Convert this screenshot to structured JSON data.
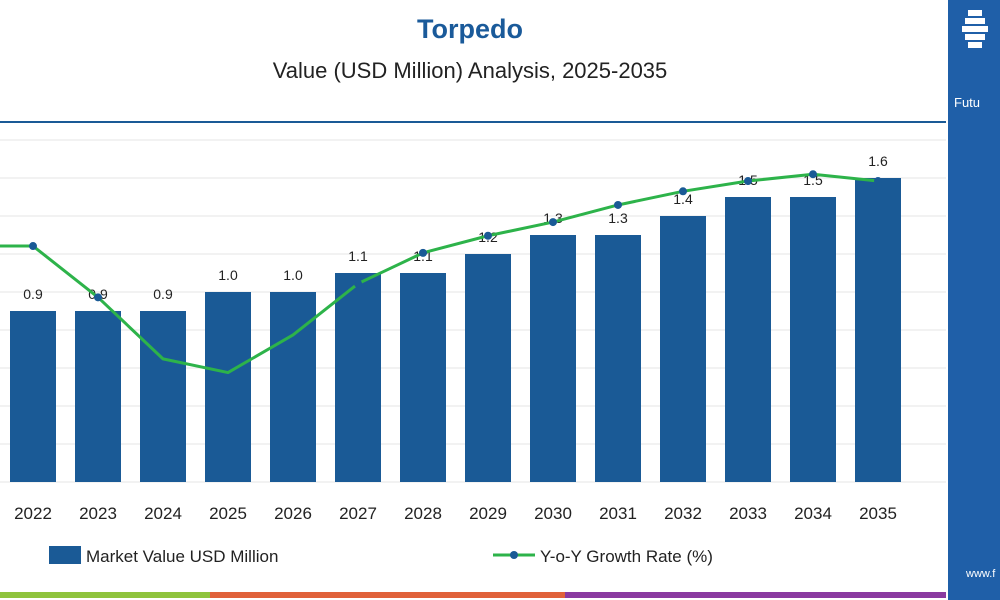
{
  "chart_data": {
    "type": "bar",
    "title": "Torpedo",
    "subtitle": "Value (USD Million) Analysis, 2025-2035",
    "categories": [
      "2022",
      "2023",
      "2024",
      "2025",
      "2026",
      "2027",
      "2028",
      "2029",
      "2030",
      "2031",
      "2032",
      "2033",
      "2034",
      "2035"
    ],
    "series": [
      {
        "name": "Market Value USD Million",
        "kind": "bar",
        "color": "#1a5a96",
        "values": [
          0.9,
          0.9,
          0.9,
          1.0,
          1.0,
          1.1,
          1.1,
          1.2,
          1.3,
          1.3,
          1.4,
          1.5,
          1.5,
          1.6
        ],
        "labels": [
          "0.9",
          "0.9",
          "0.9",
          "1.0",
          "1.0",
          "1.1",
          "1.1",
          "1.2",
          "1.3",
          "1.3",
          "1.4",
          "1.5",
          "1.5",
          "1.6"
        ]
      },
      {
        "name": "Y-o-Y Growth Rate (%)",
        "kind": "line",
        "color": "#2db34a",
        "relative_values": [
          0.69,
          0.54,
          0.36,
          0.32,
          0.43,
          0.58,
          0.67,
          0.72,
          0.76,
          0.81,
          0.85,
          0.88,
          0.9,
          0.88
        ]
      }
    ],
    "ylim": [
      0,
      1.8
    ],
    "grid": true,
    "legend": "bottom"
  },
  "panel": {
    "brand_text": "Futu",
    "footer_text": "www.f"
  },
  "colors": {
    "title": "#1a5a9a",
    "axis_rule": "#1a5a96",
    "grid": "#e6e6e6",
    "bottom_bar": [
      "#8fc33d",
      "#e0613a",
      "#8a3aa0"
    ]
  }
}
